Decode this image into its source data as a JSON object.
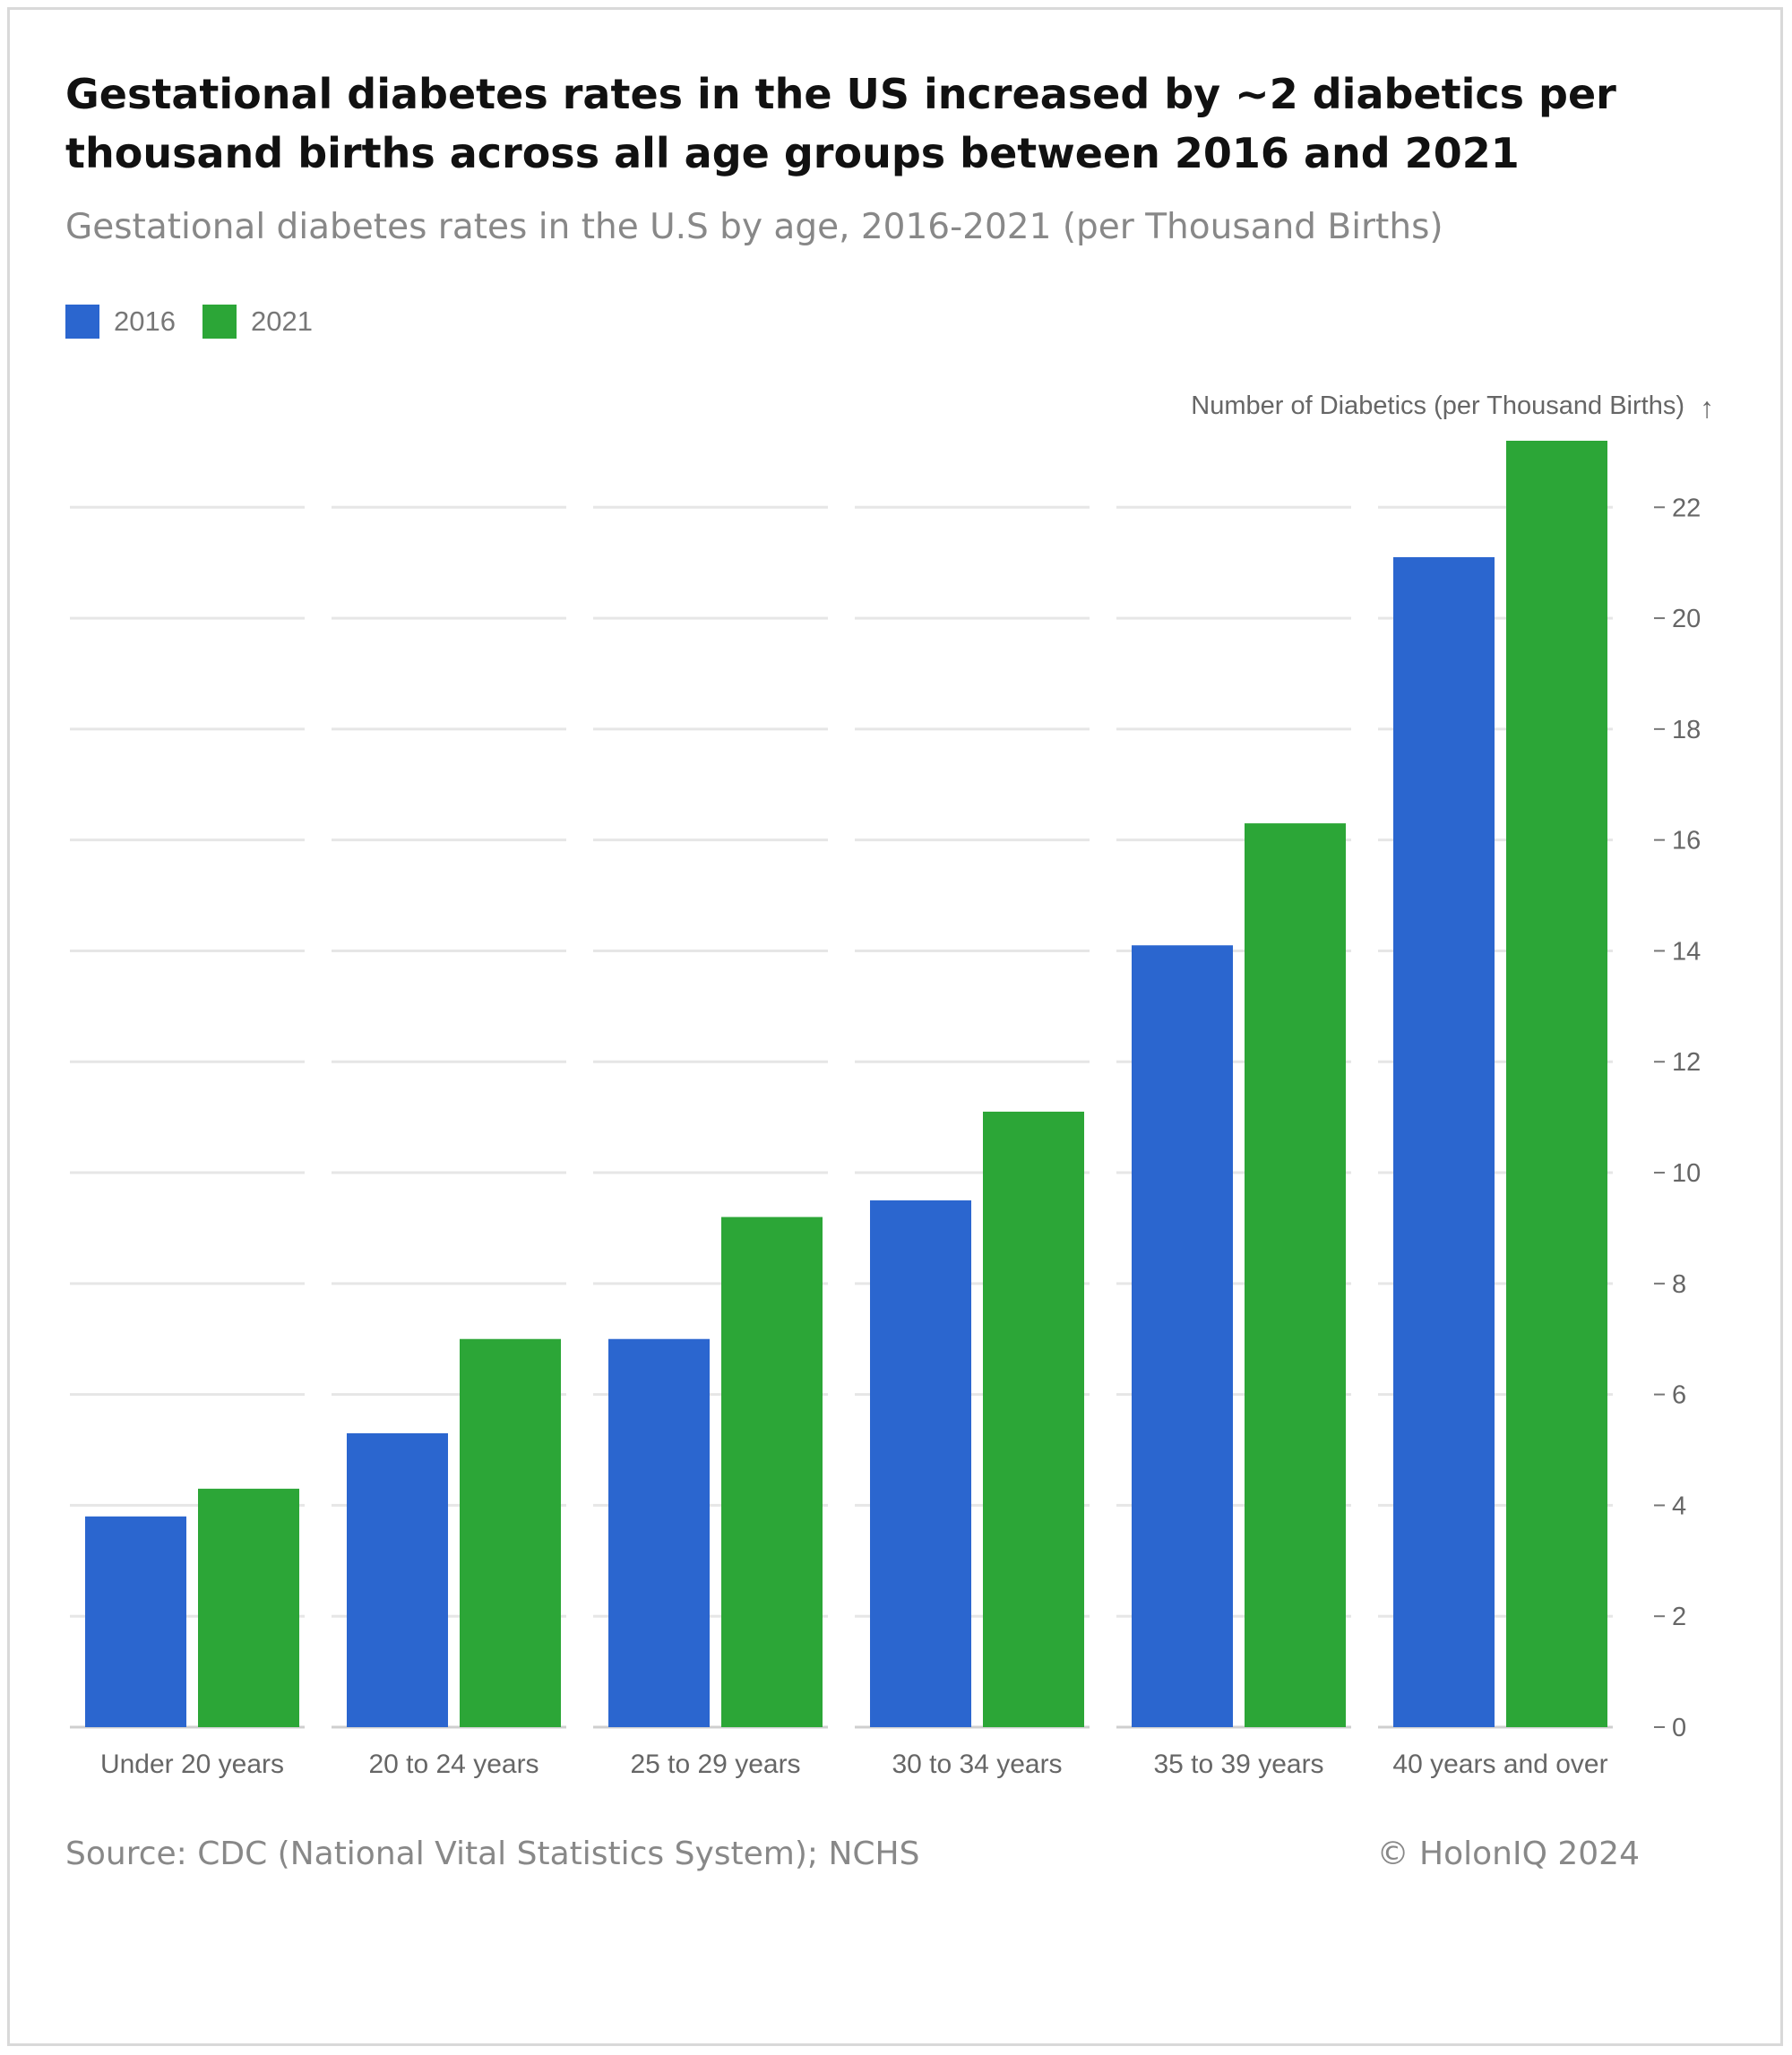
{
  "title": "Gestational diabetes rates in the US increased by ~2 diabetics per thousand births across all age groups between 2016 and 2021",
  "subtitle": "Gestational diabetes rates in the U.S by age, 2016-2021 (per Thousand Births)",
  "footer": {
    "source": "Source: CDC (National Vital Statistics System); NCHS",
    "copyright": "© HolonIQ 2024"
  },
  "colors": {
    "2016": "#2B66CF",
    "2021": "#2CA637",
    "grid": "#e6e6e6",
    "text_muted": "#888888"
  },
  "chart_data": {
    "type": "bar",
    "categories": [
      "Under 20 years",
      "20 to 24 years",
      "25 to 29 years",
      "30 to 34 years",
      "35 to 39 years",
      "40 years and over"
    ],
    "series": [
      {
        "name": "2016",
        "color": "#2B66CF",
        "values": [
          3.8,
          5.3,
          7.0,
          9.5,
          14.1,
          21.1
        ]
      },
      {
        "name": "2021",
        "color": "#2CA637",
        "values": [
          4.3,
          7.0,
          9.2,
          11.1,
          16.3,
          23.2
        ]
      }
    ],
    "ylabel": "Number of Diabetics (per Thousand Births)",
    "ylabel_arrow": "↑",
    "ylim": [
      0,
      23.2
    ],
    "yticks": [
      0,
      2,
      4,
      6,
      8,
      10,
      12,
      14,
      16,
      18,
      20,
      22
    ],
    "y_axis_side": "right",
    "grid": true,
    "legend_position": "top-left"
  }
}
